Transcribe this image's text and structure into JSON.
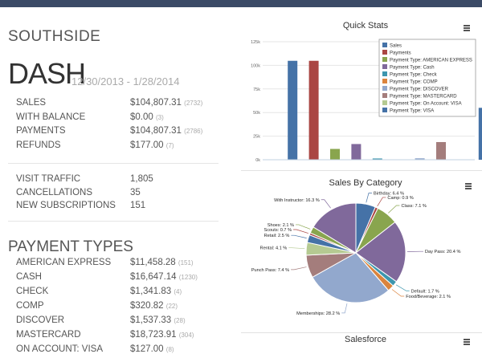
{
  "header": {
    "location": "SOUTHSIDE",
    "title": "DASH",
    "date_range": "12/30/2013 - 1/28/2014"
  },
  "summary": [
    {
      "label": "SALES",
      "value": "$104,807.31",
      "count": "(2732)"
    },
    {
      "label": "WITH BALANCE",
      "value": "$0.00",
      "count": "(3)"
    },
    {
      "label": "PAYMENTS",
      "value": "$104,807.31",
      "count": "(2786)"
    },
    {
      "label": "REFUNDS",
      "value": "$177.00",
      "count": "(7)"
    }
  ],
  "traffic": [
    {
      "label": "VISIT TRAFFIC",
      "value": "1,805"
    },
    {
      "label": "CANCELLATIONS",
      "value": "35"
    },
    {
      "label": "NEW SUBSCRIPTIONS",
      "value": "151"
    }
  ],
  "payment_types": {
    "title": "PAYMENT TYPES",
    "items": [
      {
        "label": "AMERICAN EXPRESS",
        "value": "$11,458.28",
        "count": "(151)"
      },
      {
        "label": "CASH",
        "value": "$16,647.14",
        "count": "(1230)"
      },
      {
        "label": "CHECK",
        "value": "$1,341.83",
        "count": "(4)"
      },
      {
        "label": "COMP",
        "value": "$320.82",
        "count": "(22)"
      },
      {
        "label": "DISCOVER",
        "value": "$1,537.33",
        "count": "(28)"
      },
      {
        "label": "MASTERCARD",
        "value": "$18,723.91",
        "count": "(304)"
      },
      {
        "label": "ON ACCOUNT: VISA",
        "value": "$127.00",
        "count": "(8)"
      }
    ]
  },
  "panels": {
    "quick_stats_title": "Quick Stats",
    "sales_by_category_title": "Sales By Category",
    "salesforce_title": "Salesforce"
  },
  "chart_data": [
    {
      "type": "bar",
      "title": "Quick Stats",
      "categories": [
        "Sales",
        "Payments",
        "Payment Type: AMERICAN EXPRESS",
        "Payment Type: Cash",
        "Payment Type: Check",
        "Payment Type: COMP",
        "Payment Type: DISCOVER",
        "Payment Type: MASTERCARD",
        "Payment Type: On Account: VISA",
        "Payment Type: VISA"
      ],
      "values": [
        104807,
        104807,
        11458,
        16647,
        1342,
        321,
        1537,
        18724,
        127,
        55000
      ],
      "colors": [
        "#4572a7",
        "#aa4643",
        "#89a54e",
        "#80699b",
        "#3d96ae",
        "#db843d",
        "#92a8cd",
        "#a47d7c",
        "#b5ca92",
        "#4572a7"
      ],
      "yticks": [
        "0k",
        "25k",
        "50k",
        "75k",
        "100k",
        "125k"
      ],
      "ylim": [
        0,
        125000
      ],
      "legend": "top-right"
    },
    {
      "type": "pie",
      "title": "Sales By Category",
      "slices": [
        {
          "label": "Birthday",
          "value": 6.4,
          "text": "Birthday: 6.4 %",
          "color": "#4572a7"
        },
        {
          "label": "Camp",
          "value": 0.9,
          "text": "Camp: 0.9 %",
          "color": "#aa4643"
        },
        {
          "label": "Class",
          "value": 7.1,
          "text": "Class: 7.1 %",
          "color": "#89a54e"
        },
        {
          "label": "Day Pass",
          "value": 20.4,
          "text": "Day Pass: 20.4 %",
          "color": "#80699b"
        },
        {
          "label": "Default",
          "value": 1.7,
          "text": "Default: 1.7 %",
          "color": "#3d96ae"
        },
        {
          "label": "Food/Beverage",
          "value": 2.1,
          "text": "Food/Beverage: 2.1 %",
          "color": "#db843d"
        },
        {
          "label": "Memberships",
          "value": 28.2,
          "text": "Memberships: 28.2 %",
          "color": "#92a8cd"
        },
        {
          "label": "Punch Pass",
          "value": 7.4,
          "text": "Punch Pass: 7.4 %",
          "color": "#a47d7c"
        },
        {
          "label": "Rental",
          "value": 4.1,
          "text": "Rental: 4.1 %",
          "color": "#b5ca92"
        },
        {
          "label": "Retail",
          "value": 2.5,
          "text": "Retail: 2.5 %",
          "color": "#4572a7"
        },
        {
          "label": "Scouts",
          "value": 0.7,
          "text": "Scouts: 0.7 %",
          "color": "#aa4643"
        },
        {
          "label": "Shoes",
          "value": 2.1,
          "text": "Shoes: 2.1 %",
          "color": "#89a54e"
        },
        {
          "label": "With Instructor",
          "value": 16.3,
          "text": "With Instructor: 16.3 %",
          "color": "#80699b"
        }
      ]
    }
  ]
}
